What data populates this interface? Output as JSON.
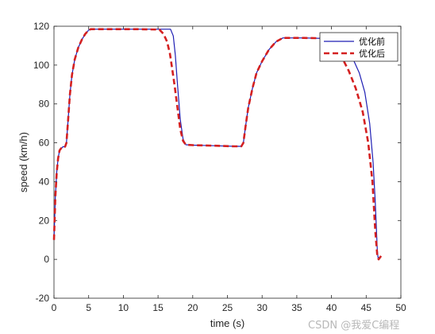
{
  "chart_data": {
    "type": "line",
    "title": "",
    "xlabel": "time (s)",
    "ylabel": "speed (km/h)",
    "xlim": [
      0,
      50
    ],
    "ylim": [
      -20,
      120
    ],
    "xticks": [
      0,
      5,
      10,
      15,
      20,
      25,
      30,
      35,
      40,
      45,
      50
    ],
    "yticks": [
      -20,
      0,
      20,
      40,
      60,
      80,
      100,
      120
    ],
    "grid": false,
    "legend_position": "top-right",
    "series": [
      {
        "name": "优化前",
        "color": "#1f1fb4",
        "style": "solid",
        "x": [
          0,
          0.2,
          0.4,
          0.6,
          0.8,
          1.0,
          1.3,
          1.6,
          1.8,
          2.0,
          2.3,
          2.6,
          3.0,
          3.5,
          4.0,
          4.5,
          5.0,
          5.3,
          8.0,
          12.0,
          16.0,
          16.8,
          17.2,
          17.5,
          17.8,
          18.2,
          18.6,
          19.0,
          20.0,
          23.0,
          26.0,
          27.0,
          27.3,
          27.6,
          28.0,
          28.6,
          29.2,
          30.0,
          31.0,
          32.0,
          33.0,
          36.0,
          39.0,
          40.0,
          41.0,
          42.0,
          43.0,
          44.0,
          44.8,
          45.5,
          46.0,
          46.3,
          46.6,
          46.7,
          47.0
        ],
        "y": [
          10,
          32,
          45,
          52,
          56,
          57,
          58,
          58,
          60,
          70,
          85,
          95,
          103,
          109,
          113,
          116,
          118,
          118.5,
          118.5,
          118.5,
          118.5,
          118.5,
          115,
          105,
          90,
          72,
          62,
          59,
          58.8,
          58.5,
          58.2,
          58.2,
          60,
          68,
          78,
          88,
          96,
          102,
          108,
          112,
          114,
          114,
          113.7,
          113.5,
          112,
          109,
          104,
          96,
          86,
          70,
          50,
          30,
          5,
          1,
          1
        ]
      },
      {
        "name": "优化后",
        "color": "#d42020",
        "style": "dashed",
        "x": [
          0,
          0.2,
          0.4,
          0.6,
          0.8,
          1.0,
          1.3,
          1.6,
          1.8,
          2.0,
          2.3,
          2.6,
          3.0,
          3.5,
          4.0,
          4.5,
          5.0,
          5.3,
          8.0,
          12.0,
          15.2,
          15.8,
          16.3,
          16.7,
          17.0,
          17.4,
          17.8,
          18.2,
          18.6,
          19.0,
          20.0,
          23.0,
          26.0,
          27.0,
          27.3,
          27.6,
          28.0,
          28.6,
          29.2,
          30.0,
          31.0,
          32.0,
          33.0,
          36.0,
          38.5,
          39.5,
          40.5,
          41.5,
          42.5,
          43.5,
          44.5,
          45.3,
          45.9,
          46.3,
          46.6,
          46.8,
          47.2
        ],
        "y": [
          10,
          32,
          45,
          52,
          56,
          57,
          58,
          58,
          60,
          70,
          85,
          95,
          103,
          109,
          113,
          116,
          118,
          118.5,
          118.5,
          118.5,
          118.3,
          116,
          112,
          106,
          99,
          89,
          78,
          67,
          61,
          59,
          58.8,
          58.5,
          58.2,
          58.2,
          60,
          68,
          78,
          88,
          96,
          102,
          108,
          112,
          114,
          114,
          113.8,
          112,
          109,
          104,
          97,
          88,
          76,
          60,
          40,
          15,
          2,
          0,
          2
        ]
      }
    ]
  },
  "watermark": "CSDN @我爱C编程"
}
